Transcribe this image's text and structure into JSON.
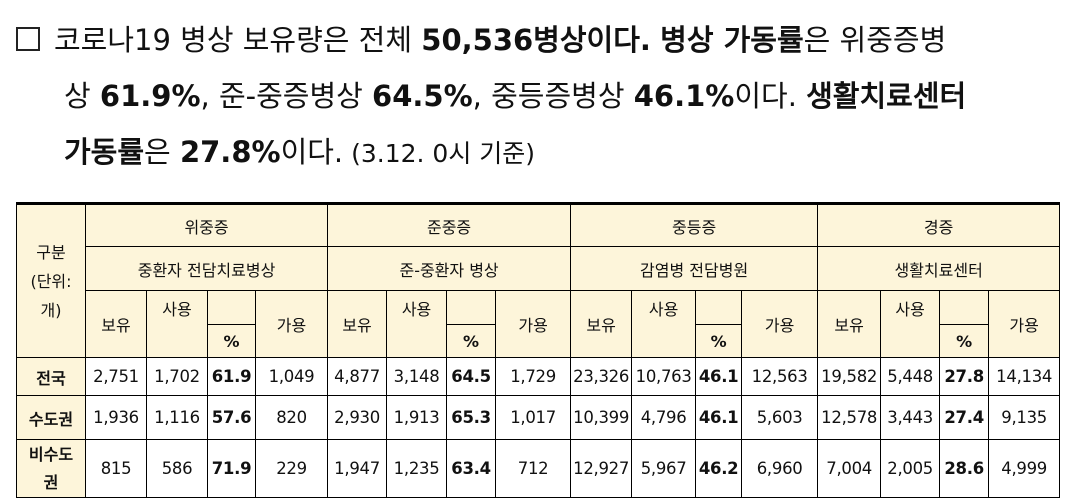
{
  "summary": {
    "bullet_icon": "square-outline-icon",
    "l1_a": "코로나19 병상 보유량은 전체 ",
    "l1_b": "50,536병상이다.",
    "l1_c": " ",
    "l1_d": "병상 가동률",
    "l1_e": "은 위중증병",
    "l2_a": "상 ",
    "l2_b": "61.9%",
    "l2_c": ", 준-중증병상 ",
    "l2_d": "64.5%",
    "l2_e": ", 중등증병상 ",
    "l2_f": "46.1%",
    "l2_g": "이다. ",
    "l2_h": "생활치료센터",
    "l3_a": "가동률",
    "l3_b": "은 ",
    "l3_c": "27.8%",
    "l3_d": "이다.",
    "l3_e": " (3.12. 0시 기준)"
  },
  "table": {
    "corner_label": "구분\n(단위:\n개)",
    "groups": [
      {
        "severity": "위중증",
        "type": "중환자 전담치료병상"
      },
      {
        "severity": "준중증",
        "type": "준-중환자 병상"
      },
      {
        "severity": "중등증",
        "type": "감염병 전담병원"
      },
      {
        "severity": "경증",
        "type": "생활치료센터"
      }
    ],
    "sub_headers": {
      "own": "보유",
      "used": "사용",
      "pct": "%",
      "avail": "가용"
    },
    "rows": [
      {
        "region": "전국",
        "vals": [
          [
            "2,751",
            "1,702",
            "61.9",
            "1,049"
          ],
          [
            "4,877",
            "3,148",
            "64.5",
            "1,729"
          ],
          [
            "23,326",
            "10,763",
            "46.1",
            "12,563"
          ],
          [
            "19,582",
            "5,448",
            "27.8",
            "14,134"
          ]
        ]
      },
      {
        "region": "수도권",
        "vals": [
          [
            "1,936",
            "1,116",
            "57.6",
            "820"
          ],
          [
            "2,930",
            "1,913",
            "65.3",
            "1,017"
          ],
          [
            "10,399",
            "4,796",
            "46.1",
            "5,603"
          ],
          [
            "12,578",
            "3,443",
            "27.4",
            "9,135"
          ]
        ]
      },
      {
        "region": "비수도\n권",
        "vals": [
          [
            "815",
            "586",
            "71.9",
            "229"
          ],
          [
            "1,947",
            "1,235",
            "63.4",
            "712"
          ],
          [
            "12,927",
            "5,967",
            "46.2",
            "6,960"
          ],
          [
            "7,004",
            "2,005",
            "28.6",
            "4,999"
          ]
        ]
      }
    ]
  }
}
